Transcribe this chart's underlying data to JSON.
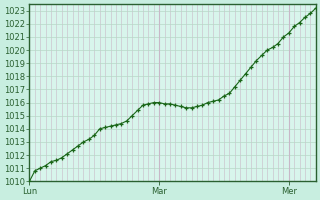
{
  "background_color": "#d8f5ec",
  "plot_bg_color": "#d8f5ec",
  "outer_bg_color": "#c8eee0",
  "grid_color_v": "#c8b8c8",
  "grid_color_h": "#b8d8c8",
  "line_color": "#1a6618",
  "marker_color": "#1a6618",
  "axis_color": "#2a6030",
  "tick_color": "#2a6030",
  "ylim": [
    1010,
    1023.5
  ],
  "yticks": [
    1010,
    1011,
    1012,
    1013,
    1014,
    1015,
    1016,
    1017,
    1018,
    1019,
    1020,
    1021,
    1022,
    1023
  ],
  "xtick_labels": [
    "Lun",
    "Mar",
    "Mer"
  ],
  "xtick_positions": [
    0,
    24,
    48
  ],
  "y_values": [
    1010.0,
    1010.8,
    1011.0,
    1011.2,
    1011.5,
    1011.6,
    1011.8,
    1012.1,
    1012.4,
    1012.7,
    1013.0,
    1013.2,
    1013.5,
    1014.0,
    1014.1,
    1014.2,
    1014.3,
    1014.4,
    1014.6,
    1015.0,
    1015.4,
    1015.8,
    1015.9,
    1016.0,
    1016.0,
    1015.9,
    1015.9,
    1015.8,
    1015.7,
    1015.6,
    1015.6,
    1015.7,
    1015.8,
    1016.0,
    1016.1,
    1016.2,
    1016.5,
    1016.7,
    1017.2,
    1017.7,
    1018.2,
    1018.7,
    1019.2,
    1019.6,
    1020.0,
    1020.2,
    1020.5,
    1021.0,
    1021.3,
    1021.8,
    1022.1,
    1022.5,
    1022.8,
    1023.2
  ],
  "tick_fontsize": 6.0,
  "marker_size": 3.0,
  "line_width": 0.8
}
